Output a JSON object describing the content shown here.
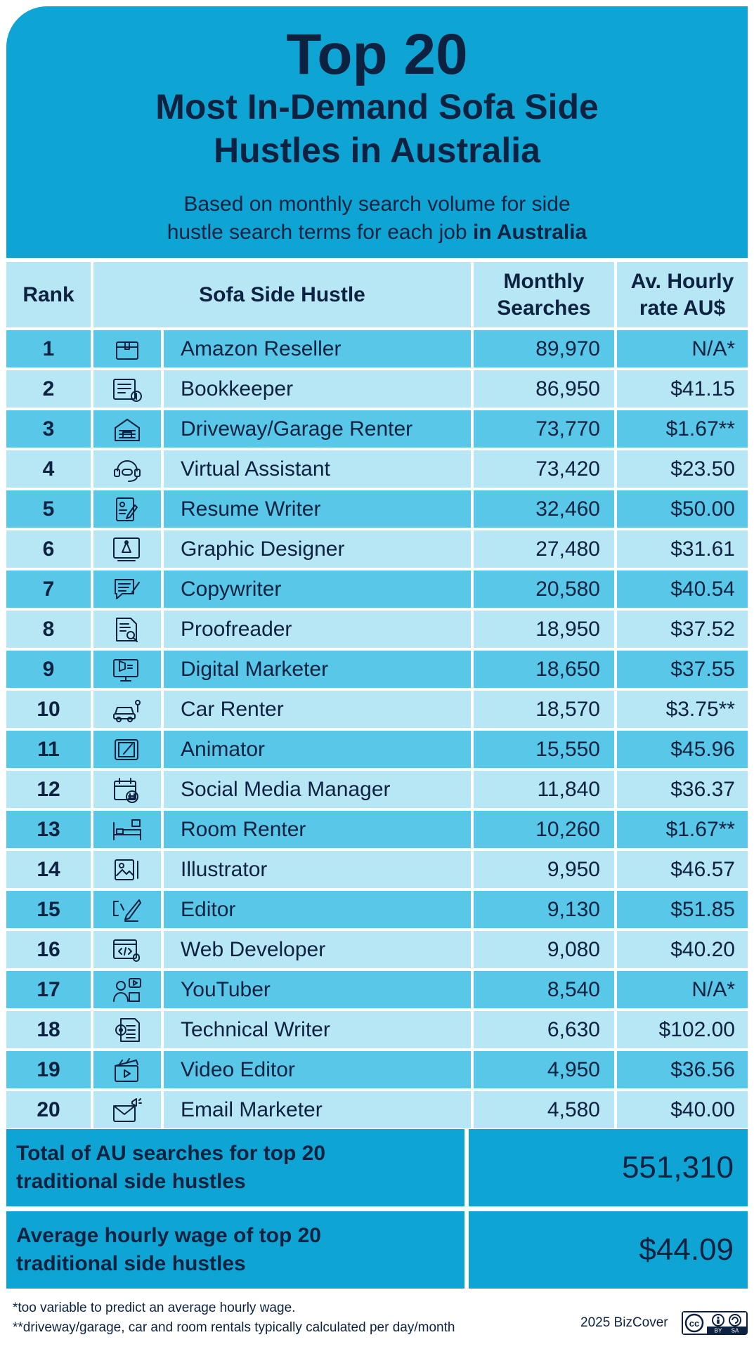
{
  "header": {
    "title": "Top 20",
    "subtitle_line1": "Most In-Demand Sofa Side",
    "subtitle_line2": "Hustles in Australia",
    "desc_line1": "Based on monthly search volume for side",
    "desc_line2_plain": "hustle search terms for each job ",
    "desc_line2_bold": "in Australia"
  },
  "table": {
    "columns": {
      "rank": "Rank",
      "hustle": "Sofa Side Hustle",
      "searches_line1": "Monthly",
      "searches_line2": "Searches",
      "rate_line1": "Av. Hourly",
      "rate_line2": "rate AU$"
    },
    "rows": [
      {
        "rank": "1",
        "icon": "package-icon",
        "name": "Amazon Reseller",
        "searches": "89,970",
        "rate": "N/A*"
      },
      {
        "rank": "2",
        "icon": "ledger-icon",
        "name": "Bookkeeper",
        "searches": "86,950",
        "rate": "$41.15"
      },
      {
        "rank": "3",
        "icon": "garage-icon",
        "name": "Driveway/Garage Renter",
        "searches": "73,770",
        "rate": "$1.67**"
      },
      {
        "rank": "4",
        "icon": "headset-icon",
        "name": "Virtual Assistant",
        "searches": "73,420",
        "rate": "$23.50"
      },
      {
        "rank": "5",
        "icon": "resume-icon",
        "name": "Resume Writer",
        "searches": "32,460",
        "rate": "$50.00"
      },
      {
        "rank": "6",
        "icon": "design-tool-icon",
        "name": "Graphic Designer",
        "searches": "27,480",
        "rate": "$31.61"
      },
      {
        "rank": "7",
        "icon": "speech-pen-icon",
        "name": "Copywriter",
        "searches": "20,580",
        "rate": "$40.54"
      },
      {
        "rank": "8",
        "icon": "document-search-icon",
        "name": "Proofreader",
        "searches": "18,950",
        "rate": "$37.52"
      },
      {
        "rank": "9",
        "icon": "megaphone-monitor-icon",
        "name": "Digital Marketer",
        "searches": "18,650",
        "rate": "$37.55"
      },
      {
        "rank": "10",
        "icon": "car-icon",
        "name": "Car Renter",
        "searches": "18,570",
        "rate": "$3.75**"
      },
      {
        "rank": "11",
        "icon": "tablet-pen-icon",
        "name": "Animator",
        "searches": "15,550",
        "rate": "$45.96"
      },
      {
        "rank": "12",
        "icon": "calendar-hashtag-icon",
        "name": "Social Media Manager",
        "searches": "11,840",
        "rate": "$36.37"
      },
      {
        "rank": "13",
        "icon": "bed-icon",
        "name": "Room Renter",
        "searches": "10,260",
        "rate": "$1.67**"
      },
      {
        "rank": "14",
        "icon": "picture-pencil-icon",
        "name": "Illustrator",
        "searches": "9,950",
        "rate": "$46.57"
      },
      {
        "rank": "15",
        "icon": "pen-edit-icon",
        "name": "Editor",
        "searches": "9,130",
        "rate": "$51.85"
      },
      {
        "rank": "16",
        "icon": "code-browser-icon",
        "name": "Web Developer",
        "searches": "9,080",
        "rate": "$40.20"
      },
      {
        "rank": "17",
        "icon": "video-creator-icon",
        "name": "YouTuber",
        "searches": "8,540",
        "rate": "N/A*"
      },
      {
        "rank": "18",
        "icon": "gear-document-icon",
        "name": "Technical Writer",
        "searches": "6,630",
        "rate": "$102.00"
      },
      {
        "rank": "19",
        "icon": "clapperboard-icon",
        "name": "Video Editor",
        "searches": "4,950",
        "rate": "$36.56"
      },
      {
        "rank": "20",
        "icon": "envelope-megaphone-icon",
        "name": "Email Marketer",
        "searches": "4,580",
        "rate": "$40.00"
      }
    ]
  },
  "summary": {
    "total_label_line1": "Total of AU searches for top 20",
    "total_label_line2": "traditional side hustles",
    "total_value": "551,310",
    "avg_label_line1": "Average hourly wage of top 20",
    "avg_label_line2": "traditional side hustles",
    "avg_value": "$44.09"
  },
  "footnotes": {
    "line1": "*too variable to predict an average hourly wage.",
    "line2": "**driveway/garage, car and room rentals typically calculated per day/month"
  },
  "credit": "2025 BizCover",
  "license": {
    "icon": "creative-commons-by-sa-icon",
    "text_by": "BY",
    "text_sa": "SA",
    "text_cc": "cc"
  },
  "colors": {
    "header_blue": "#0ea5d5",
    "row_dark": "#58c7e8",
    "row_light": "#b7e6f4",
    "text_navy": "#0d2240"
  },
  "chart_data": {
    "type": "table",
    "title": "Top 20 Most In-Demand Sofa Side Hustles in Australia",
    "subtitle": "Based on monthly search volume for side hustle search terms for each job in Australia",
    "columns": [
      "Rank",
      "Sofa Side Hustle",
      "Monthly Searches",
      "Av. Hourly rate AU$"
    ],
    "categories": [
      "Amazon Reseller",
      "Bookkeeper",
      "Driveway/Garage Renter",
      "Virtual Assistant",
      "Resume Writer",
      "Graphic Designer",
      "Copywriter",
      "Proofreader",
      "Digital Marketer",
      "Car Renter",
      "Animator",
      "Social Media Manager",
      "Room Renter",
      "Illustrator",
      "Editor",
      "Web Developer",
      "YouTuber",
      "Technical Writer",
      "Video Editor",
      "Email Marketer"
    ],
    "series": [
      {
        "name": "Monthly Searches",
        "values": [
          89970,
          86950,
          73770,
          73420,
          32460,
          27480,
          20580,
          18950,
          18650,
          18570,
          15550,
          11840,
          10260,
          9950,
          9130,
          9080,
          8540,
          6630,
          4950,
          4580
        ]
      },
      {
        "name": "Av. Hourly rate AU$",
        "values": [
          null,
          41.15,
          1.67,
          23.5,
          50.0,
          31.61,
          40.54,
          37.52,
          37.55,
          3.75,
          45.96,
          36.37,
          1.67,
          46.57,
          51.85,
          40.2,
          null,
          102.0,
          36.56,
          40.0
        ]
      }
    ],
    "totals": {
      "total_searches": 551310,
      "average_hourly_wage": 44.09
    }
  }
}
